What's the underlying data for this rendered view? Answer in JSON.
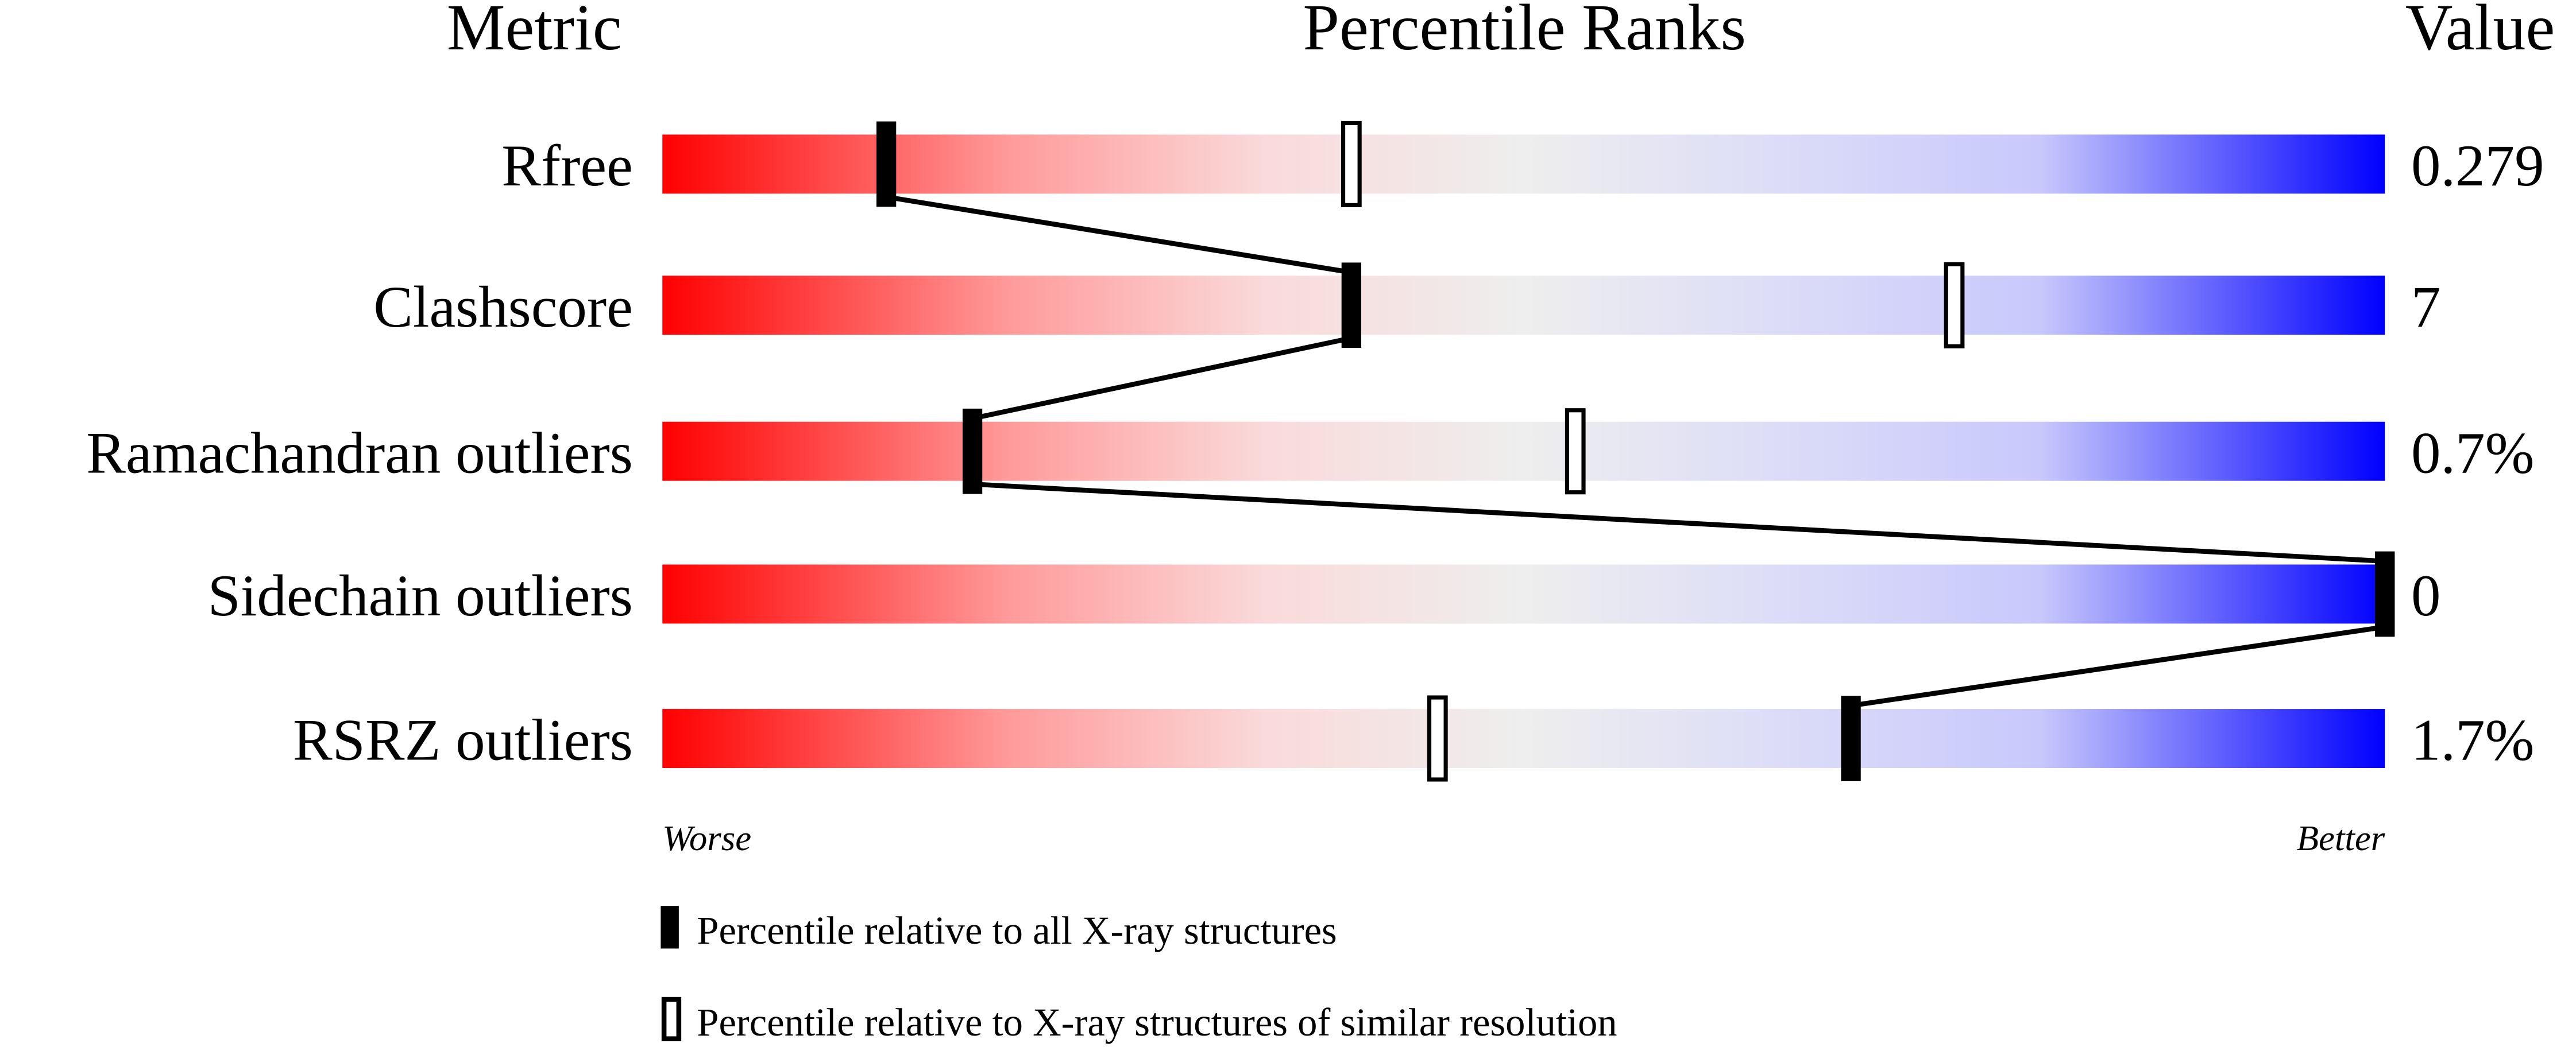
{
  "chart_data": {
    "type": "percentile-slider",
    "headers": {
      "metric": "Metric",
      "ranks": "Percentile Ranks",
      "value": "Value"
    },
    "xlim": [
      0,
      100
    ],
    "rows": [
      {
        "metric": "Rfree",
        "value": "0.279",
        "percentile_all": 13,
        "percentile_similar": 40
      },
      {
        "metric": "Clashscore",
        "value": "7",
        "percentile_all": 40,
        "percentile_similar": 75
      },
      {
        "metric": "Ramachandran outliers",
        "value": "0.7%",
        "percentile_all": 18,
        "percentile_similar": 53
      },
      {
        "metric": "Sidechain outliers",
        "value": "0",
        "percentile_all": 100,
        "percentile_similar": null
      },
      {
        "metric": "RSRZ outliers",
        "value": "1.7%",
        "percentile_all": 69,
        "percentile_similar": 45
      }
    ],
    "axis_labels": {
      "left": "Worse",
      "right": "Better"
    },
    "legend": [
      {
        "marker": "filled",
        "label": "Percentile relative to all X-ray structures"
      },
      {
        "marker": "open",
        "label": "Percentile relative to X-ray structures of similar resolution"
      }
    ],
    "colors": {
      "worse": "#ff0000",
      "middle": "#eeeeee",
      "better": "#0000ff"
    }
  }
}
